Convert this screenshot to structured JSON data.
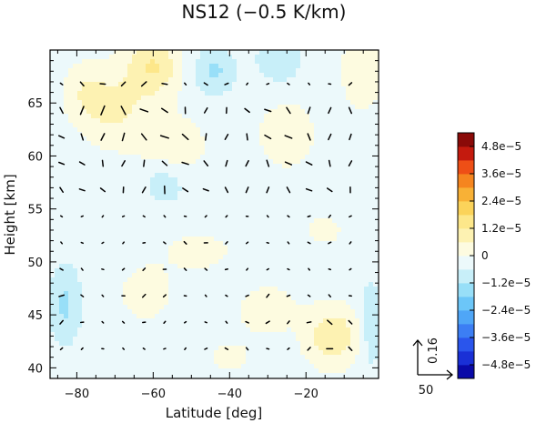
{
  "chart_data": {
    "type": "heatmap",
    "title": "NS12 (−0.5 K/km)",
    "xlabel": "Latitude [deg]",
    "ylabel": "Height [km]",
    "xlim": [
      -87,
      -1
    ],
    "ylim": [
      39,
      70
    ],
    "xticks": [
      {
        "value": -80,
        "label": "−80"
      },
      {
        "value": -60,
        "label": "−60"
      },
      {
        "value": -40,
        "label": "−40"
      },
      {
        "value": -20,
        "label": "−20"
      }
    ],
    "yticks": [
      {
        "value": 40,
        "label": "40"
      },
      {
        "value": 45,
        "label": "45"
      },
      {
        "value": 50,
        "label": "50"
      },
      {
        "value": 55,
        "label": "55"
      },
      {
        "value": 60,
        "label": "60"
      },
      {
        "value": 65,
        "label": "65"
      }
    ],
    "colorbar": {
      "min": -5.4e-05,
      "max": 5.4e-05,
      "levels": [
        {
          "value": -4.8e-05,
          "color": "#0a0aa8"
        },
        {
          "value": -4.2e-05,
          "color": "#1a30d6"
        },
        {
          "value": -3.6e-05,
          "color": "#2a55ec"
        },
        {
          "value": -3e-05,
          "color": "#3c7ef4"
        },
        {
          "value": -2.4e-05,
          "color": "#4fa6f7"
        },
        {
          "value": -1.8e-05,
          "color": "#6cc6f8"
        },
        {
          "value": -1.2e-05,
          "color": "#98dff8"
        },
        {
          "value": -6e-06,
          "color": "#c8eff9"
        },
        {
          "value": 0.0,
          "color": "#ecf9fb"
        },
        {
          "value": 6e-06,
          "color": "#fdfbe0"
        },
        {
          "value": 1.2e-05,
          "color": "#fdf2b2"
        },
        {
          "value": 1.8e-05,
          "color": "#fde78a"
        },
        {
          "value": 2.4e-05,
          "color": "#fbd35a"
        },
        {
          "value": 3e-05,
          "color": "#f8b136"
        },
        {
          "value": 3.6e-05,
          "color": "#f5851f"
        },
        {
          "value": 4.2e-05,
          "color": "#ee4f16"
        },
        {
          "value": 4.8e-05,
          "color": "#c41a0e"
        },
        {
          "value": 5.4e-05,
          "color": "#8a0a08"
        }
      ],
      "tick_labels": [
        {
          "value": 4.8e-05,
          "label": "4.8e−5"
        },
        {
          "value": 3.6e-05,
          "label": "3.6e−5"
        },
        {
          "value": 2.4e-05,
          "label": "2.4e−5"
        },
        {
          "value": 1.2e-05,
          "label": "1.2e−5"
        },
        {
          "value": 0.0,
          "label": "0"
        },
        {
          "value": -1.2e-05,
          "label": "−1.2e−5"
        },
        {
          "value": -2.4e-05,
          "label": "−2.4e−5"
        },
        {
          "value": -3.6e-05,
          "label": "−3.6e−5"
        },
        {
          "value": -4.8e-05,
          "label": "−4.8e−5"
        }
      ]
    },
    "blobs": [
      {
        "lat": -60,
        "z": 68.5,
        "amp": 1.5e-05,
        "sx": 5,
        "sz": 2.0
      },
      {
        "lat": -70,
        "z": 64.5,
        "amp": 1e-05,
        "sx": 6,
        "sz": 2.5
      },
      {
        "lat": -55,
        "z": 61.0,
        "amp": 8e-06,
        "sx": 6,
        "sz": 2.0
      },
      {
        "lat": -78,
        "z": 66.0,
        "amp": 7e-06,
        "sx": 4,
        "sz": 2.0
      },
      {
        "lat": -44,
        "z": 68.0,
        "amp": -1e-05,
        "sx": 4,
        "sz": 1.5
      },
      {
        "lat": -27,
        "z": 69.0,
        "amp": -9e-06,
        "sx": 4,
        "sz": 1.5
      },
      {
        "lat": -57,
        "z": 57.5,
        "amp": -7e-06,
        "sx": 4,
        "sz": 1.5
      },
      {
        "lat": -25,
        "z": 62.0,
        "amp": 5e-06,
        "sx": 7,
        "sz": 3.0
      },
      {
        "lat": -5,
        "z": 68.0,
        "amp": 8e-06,
        "sx": 4,
        "sz": 2.5
      },
      {
        "lat": -83,
        "z": 46.0,
        "amp": -1e-05,
        "sx": 3,
        "sz": 2.5
      },
      {
        "lat": -13,
        "z": 43.0,
        "amp": 1.4e-05,
        "sx": 5,
        "sz": 2.0
      },
      {
        "lat": -30,
        "z": 45.5,
        "amp": 8e-06,
        "sx": 5,
        "sz": 1.5
      },
      {
        "lat": -62,
        "z": 47.0,
        "amp": 6e-06,
        "sx": 5,
        "sz": 2.0
      },
      {
        "lat": -3,
        "z": 44.0,
        "amp": -8e-06,
        "sx": 2,
        "sz": 3.0
      },
      {
        "lat": -48,
        "z": 51.0,
        "amp": 5e-06,
        "sx": 7,
        "sz": 1.5
      },
      {
        "lat": -15,
        "z": 53.0,
        "amp": 4e-06,
        "sx": 5,
        "sz": 1.5
      },
      {
        "lat": -40,
        "z": 41.0,
        "amp": 4e-06,
        "sx": 6,
        "sz": 1.5
      }
    ],
    "vector_reference": {
      "horizontal_label": "50",
      "vertical_label": "0.16"
    }
  }
}
